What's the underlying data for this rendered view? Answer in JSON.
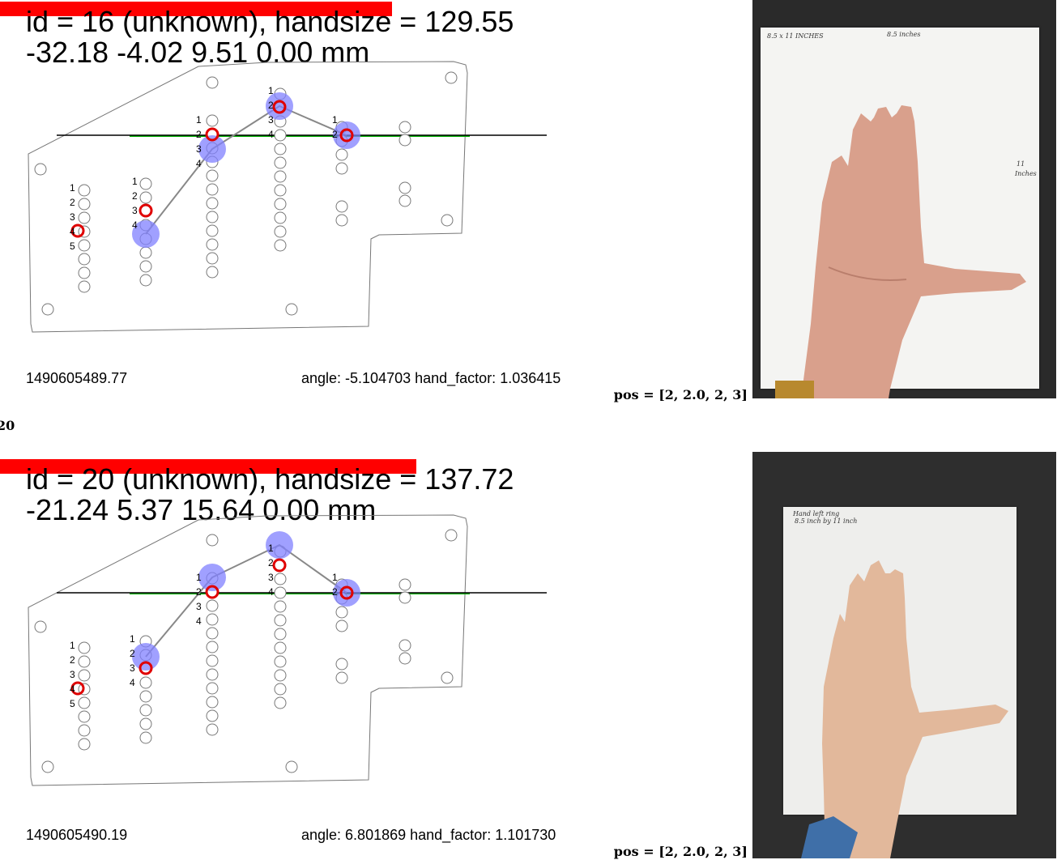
{
  "id_label": "20",
  "records": [
    {
      "title_line1": "id = 16 (unknown), handsize = 129.55",
      "title_line2": "-32.18 -4.02 9.51 0.00 mm",
      "timestamp": "1490605489.77",
      "angle_text": "angle: -5.104703 hand_factor: 1.036415",
      "pos_text": "pos = [2, 2.0, 2, 3]",
      "photo_notes": [
        "8.5 x 11 INCHES",
        "8.5 inches",
        "11",
        "Inches"
      ],
      "column_labels": [
        [
          "1",
          "2",
          "3",
          "4",
          "5"
        ],
        [
          "1",
          "2",
          "3",
          "4"
        ],
        [
          "1",
          "2",
          "3",
          "4"
        ],
        [
          "1",
          "2",
          "3",
          "4"
        ],
        [
          "1",
          "2"
        ]
      ]
    },
    {
      "title_line1": "id = 20 (unknown), handsize = 137.72",
      "title_line2": "-21.24 5.37 15.64 0.00 mm",
      "timestamp": "1490605490.19",
      "angle_text": "angle: 6.801869 hand_factor: 1.101730",
      "pos_text": "pos = [2, 2.0, 2, 3]",
      "photo_notes": [
        "Hand left ring",
        "8.5 inch by 11 inch"
      ],
      "column_labels": [
        [
          "1",
          "2",
          "3",
          "4",
          "5"
        ],
        [
          "1",
          "2",
          "3",
          "4"
        ],
        [
          "1",
          "2",
          "3",
          "4"
        ],
        [
          "1",
          "2",
          "3",
          "4"
        ],
        [
          "1",
          "2"
        ]
      ]
    }
  ],
  "colors": {
    "red_bar": "#ff0000",
    "selected_hole": "#e00000",
    "fingertip": "#8080ff",
    "baseline": "#000000",
    "green_line": "#00b000"
  }
}
